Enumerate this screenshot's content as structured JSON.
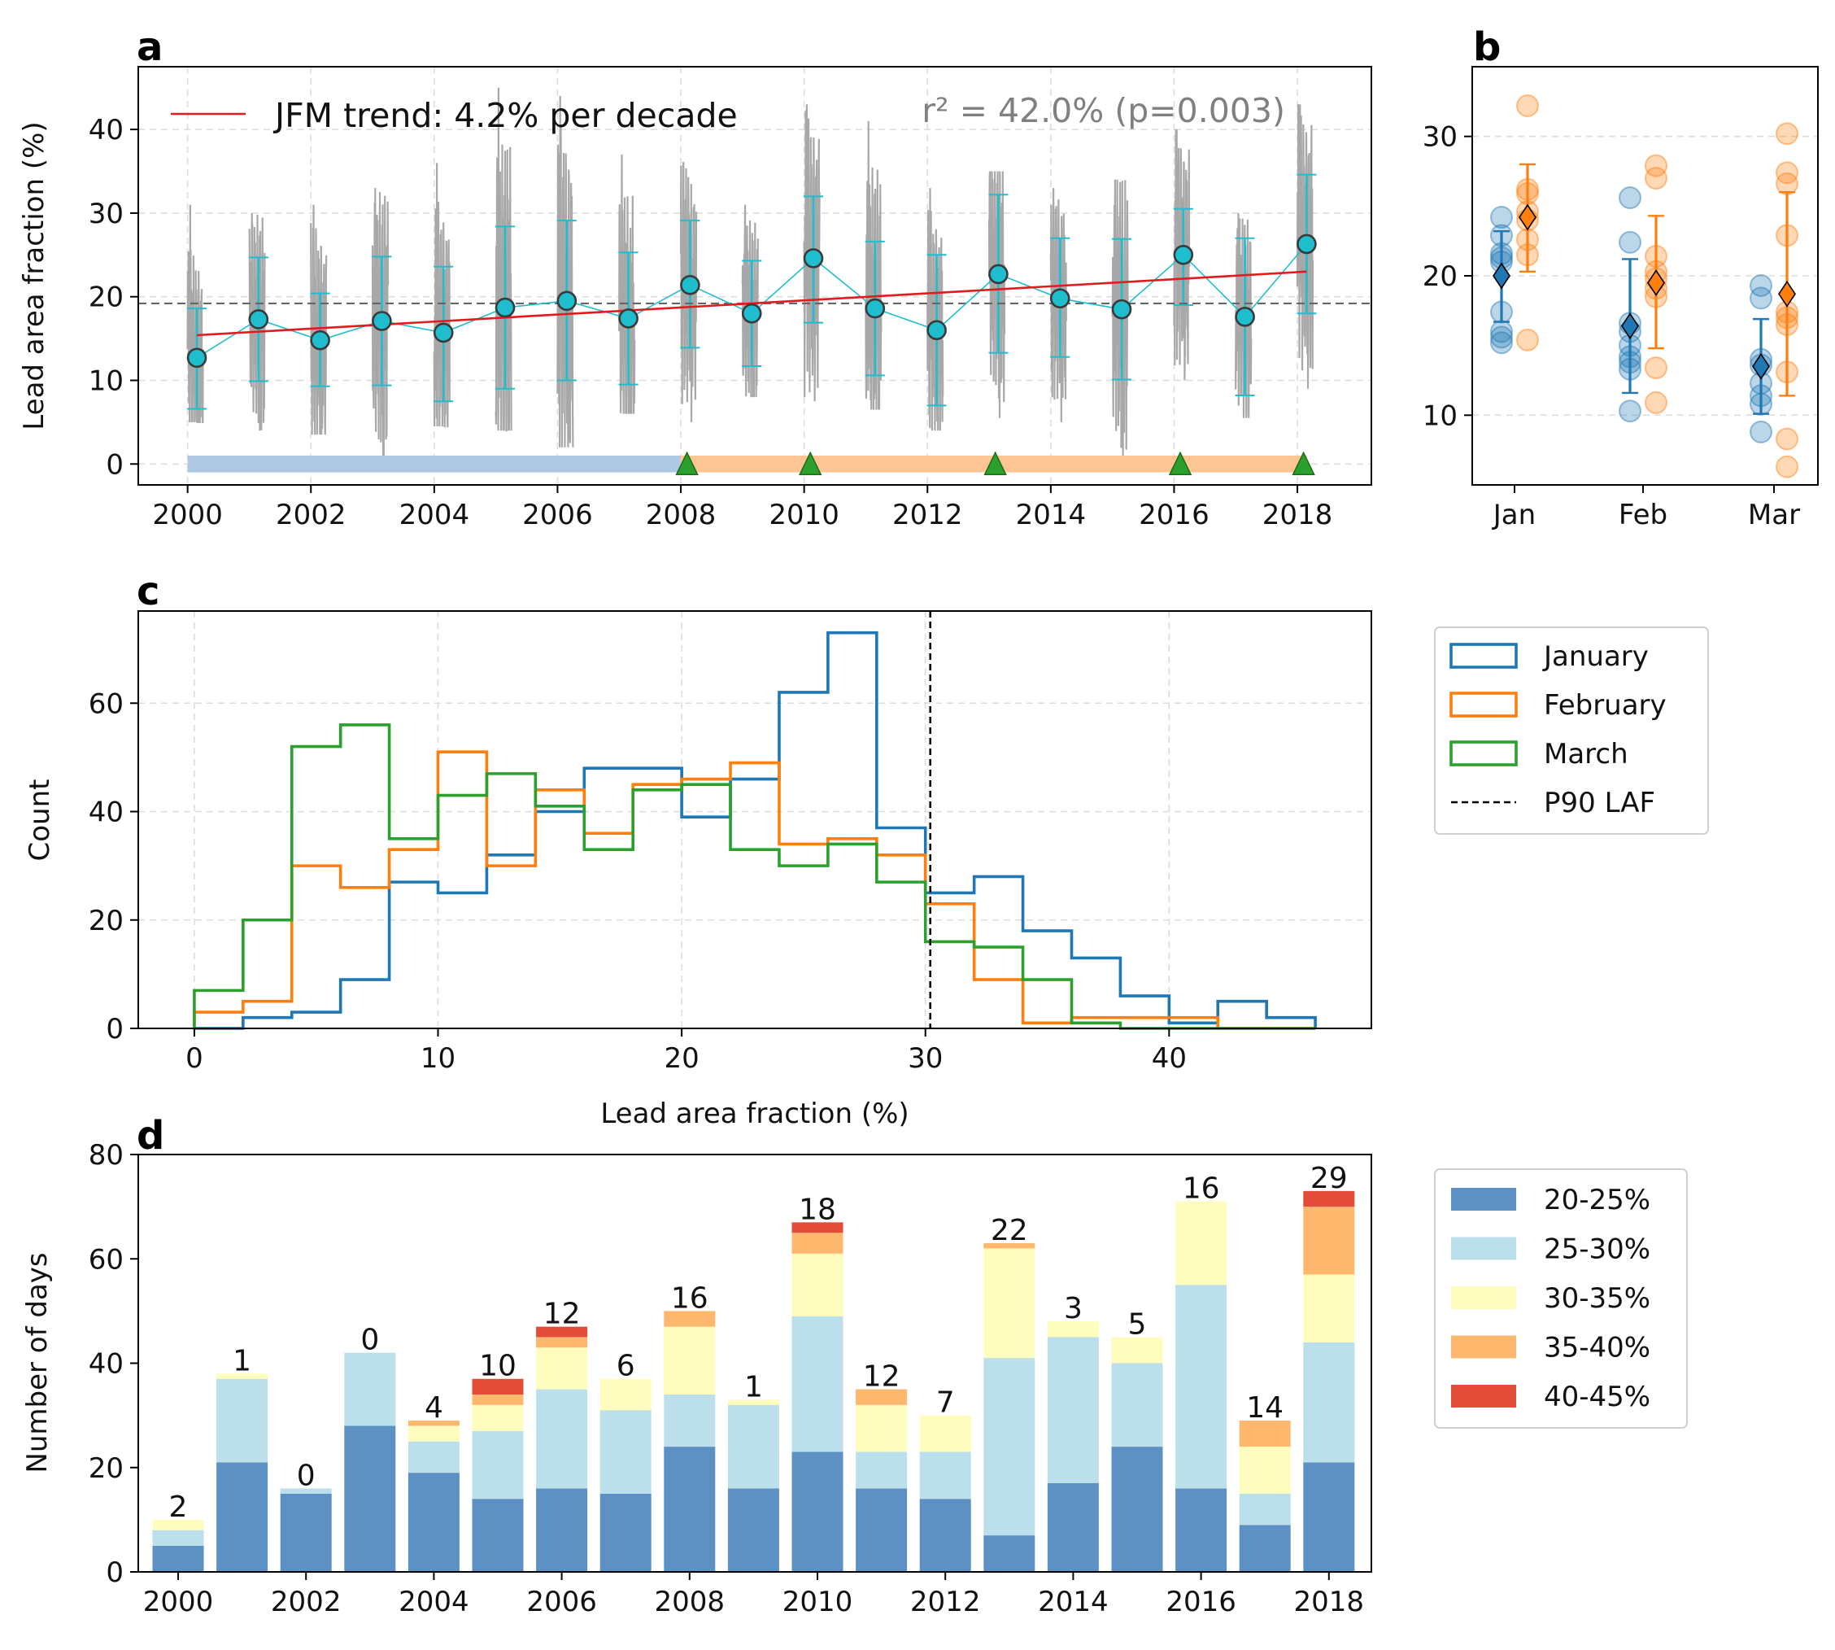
{
  "panels": {
    "a": {
      "letter": "a"
    },
    "b": {
      "letter": "b"
    },
    "c": {
      "letter": "c"
    },
    "d": {
      "letter": "d"
    }
  },
  "chart_data": [
    {
      "id": "a",
      "type": "line",
      "ylabel": "Lead area fraction (%)",
      "xlim": [
        1999.2,
        2019.2
      ],
      "ylim": [
        -2.5,
        47.5
      ],
      "xticks": [
        2000,
        2002,
        2004,
        2006,
        2008,
        2010,
        2012,
        2014,
        2016,
        2018
      ],
      "yticks": [
        0,
        10,
        20,
        30,
        40
      ],
      "grid": true,
      "legend": "top-left",
      "years": [
        2000,
        2001,
        2002,
        2003,
        2004,
        2005,
        2006,
        2007,
        2008,
        2009,
        2010,
        2011,
        2012,
        2013,
        2014,
        2015,
        2016,
        2017,
        2018
      ],
      "means": [
        12.7,
        17.3,
        14.8,
        17.1,
        15.7,
        18.7,
        19.5,
        17.4,
        21.4,
        18.0,
        24.6,
        18.6,
        16.0,
        22.7,
        19.8,
        18.5,
        25.0,
        17.6,
        26.3
      ],
      "std_lower": [
        6.6,
        9.9,
        9.3,
        9.4,
        7.5,
        9.0,
        10.0,
        9.5,
        13.9,
        11.7,
        16.9,
        10.6,
        7.0,
        13.3,
        12.8,
        10.1,
        19.0,
        8.2,
        18.0
      ],
      "std_upper": [
        18.6,
        24.7,
        20.4,
        24.8,
        23.6,
        28.4,
        29.1,
        25.3,
        29.1,
        24.3,
        32.0,
        26.6,
        25.0,
        32.2,
        27.0,
        26.9,
        30.5,
        27.0,
        34.6
      ],
      "daily_min": [
        5.0,
        4.0,
        3.5,
        1.0,
        4.5,
        4.0,
        2.0,
        6.0,
        5.0,
        8.0,
        7.5,
        6.5,
        4.0,
        5.5,
        5.0,
        1.0,
        10.0,
        5.5,
        9.0
      ],
      "daily_max": [
        31.0,
        30.0,
        31.0,
        33.0,
        36.0,
        45.0,
        44.0,
        37.0,
        36.0,
        31.0,
        43.0,
        41.0,
        33.0,
        35.0,
        33.0,
        34.0,
        40.0,
        30.0,
        43.0
      ],
      "mean_line": 19.2,
      "trend": {
        "label": "JFM trend: 4.2% per decade",
        "start": [
          2000.15,
          15.4
        ],
        "end": [
          2018.15,
          23.0
        ],
        "color": "#e41a1c"
      },
      "stats_text": "r² = 42.0% (p=0.003)",
      "periods": [
        {
          "from": 2000,
          "to": 2008,
          "color": "#aec8e3"
        },
        {
          "from": 2008,
          "to": 2018.15,
          "color": "#fdc593"
        }
      ],
      "event_years": [
        2008.1,
        2010.1,
        2013.1,
        2016.1,
        2018.1
      ],
      "colors": {
        "mean": "#1fbecf",
        "raw": "#a8a8a8",
        "event": "#2ca02c",
        "ref_line": "#666666"
      }
    },
    {
      "id": "b",
      "type": "scatter",
      "categories": [
        "Jan",
        "Feb",
        "Mar"
      ],
      "ylim": [
        5,
        35
      ],
      "yticks": [
        10,
        20,
        30
      ],
      "grid": true,
      "series": [
        {
          "color": "#1f77b4",
          "points": [
            [
              15.2,
              15.6,
              16.0,
              17.4,
              21.0,
              21.3,
              21.6,
              22.9,
              24.2
            ],
            [
              10.3,
              13.3,
              13.8,
              14.2,
              15.0,
              16.0,
              16.6,
              22.4,
              25.6
            ],
            [
              8.8,
              10.8,
              11.4,
              12.3,
              13.6,
              14.0,
              18.4,
              19.3
            ]
          ],
          "means": [
            20.0,
            16.4,
            13.5
          ],
          "err_low": [
            16.7,
            11.6,
            10.1
          ],
          "err_high": [
            23.2,
            21.2,
            16.9
          ]
        },
        {
          "color": "#ff7f0e",
          "points": [
            [
              15.4,
              21.5,
              22.6,
              24.0,
              24.6,
              25.9,
              26.2,
              32.2
            ],
            [
              10.9,
              13.4,
              18.5,
              19.1,
              19.8,
              20.3,
              21.4,
              27.0,
              27.9
            ],
            [
              6.3,
              8.3,
              13.1,
              16.5,
              17.0,
              17.4,
              22.9,
              26.6,
              27.4,
              30.2
            ]
          ],
          "means": [
            24.2,
            19.5,
            18.7
          ],
          "err_low": [
            20.3,
            14.8,
            11.4
          ],
          "err_high": [
            28.0,
            24.3,
            26.0
          ]
        }
      ]
    },
    {
      "id": "c",
      "type": "histogram",
      "xlabel": "Lead area fraction (%)",
      "ylabel": "Count",
      "xlim": [
        -2.3,
        48.3
      ],
      "ylim": [
        0,
        77
      ],
      "xticks": [
        0,
        10,
        20,
        30,
        40
      ],
      "yticks": [
        0,
        20,
        40,
        60
      ],
      "grid": true,
      "legend": "outside-right",
      "bins": [
        0,
        2,
        4,
        6,
        8,
        10,
        12,
        14,
        16,
        18,
        20,
        22,
        24,
        26,
        28,
        30,
        32,
        34,
        36,
        38,
        40,
        42,
        44,
        46
      ],
      "series": [
        {
          "name": "January",
          "color": "#1f77b4",
          "values": [
            0,
            2,
            3,
            9,
            27,
            25,
            32,
            40,
            48,
            48,
            39,
            46,
            62,
            73,
            37,
            25,
            28,
            18,
            13,
            6,
            1,
            5,
            2
          ]
        },
        {
          "name": "February",
          "color": "#ff7f0e",
          "values": [
            3,
            5,
            30,
            26,
            33,
            51,
            30,
            44,
            36,
            45,
            46,
            49,
            34,
            35,
            32,
            23,
            9,
            1,
            2,
            2,
            2,
            0,
            0
          ]
        },
        {
          "name": "March",
          "color": "#2ca02c",
          "values": [
            7,
            20,
            52,
            56,
            35,
            43,
            47,
            41,
            33,
            44,
            45,
            33,
            30,
            34,
            27,
            16,
            15,
            9,
            1,
            0,
            0,
            0,
            0
          ]
        }
      ],
      "vline": {
        "name": "P90 LAF",
        "x": 30.2
      }
    },
    {
      "id": "d",
      "type": "bar",
      "ylabel": "Number of days",
      "categories": [
        "2000",
        "2001",
        "2002",
        "2003",
        "2004",
        "2005",
        "2006",
        "2007",
        "2008",
        "2009",
        "2010",
        "2011",
        "2012",
        "2013",
        "2014",
        "2015",
        "2016",
        "2017",
        "2018"
      ],
      "xticks": [
        2000,
        2002,
        2004,
        2006,
        2008,
        2010,
        2012,
        2014,
        2016,
        2018
      ],
      "ylim": [
        0,
        80
      ],
      "yticks": [
        0,
        20,
        40,
        60,
        80
      ],
      "legend": "outside-right",
      "series": [
        {
          "name": "20-25%",
          "color": "#5e91c3",
          "values": [
            5,
            21,
            15,
            28,
            19,
            14,
            16,
            15,
            24,
            16,
            23,
            16,
            14,
            7,
            17,
            24,
            16,
            9,
            21
          ]
        },
        {
          "name": "25-30%",
          "color": "#bbe0eb",
          "values": [
            3,
            16,
            1,
            14,
            6,
            13,
            19,
            16,
            10,
            16,
            26,
            7,
            9,
            34,
            28,
            16,
            39,
            6,
            23
          ]
        },
        {
          "name": "30-35%",
          "color": "#fefdbd",
          "values": [
            2,
            1,
            0,
            0,
            3,
            5,
            8,
            6,
            13,
            1,
            12,
            9,
            7,
            21,
            3,
            5,
            16,
            9,
            13
          ]
        },
        {
          "name": "35-40%",
          "color": "#fdb86d",
          "values": [
            0,
            0,
            0,
            0,
            1,
            2,
            2,
            0,
            3,
            0,
            4,
            3,
            0,
            1,
            0,
            0,
            0,
            5,
            13
          ]
        },
        {
          "name": "40-45%",
          "color": "#e24c38",
          "values": [
            0,
            0,
            0,
            0,
            0,
            3,
            2,
            0,
            0,
            0,
            2,
            0,
            0,
            0,
            0,
            0,
            0,
            0,
            3
          ]
        }
      ],
      "labels": [
        "2",
        "1",
        "0",
        "0",
        "4",
        "10",
        "12",
        "6",
        "16",
        "1",
        "18",
        "12",
        "7",
        "22",
        "3",
        "5",
        "16",
        "14",
        "29"
      ]
    }
  ]
}
